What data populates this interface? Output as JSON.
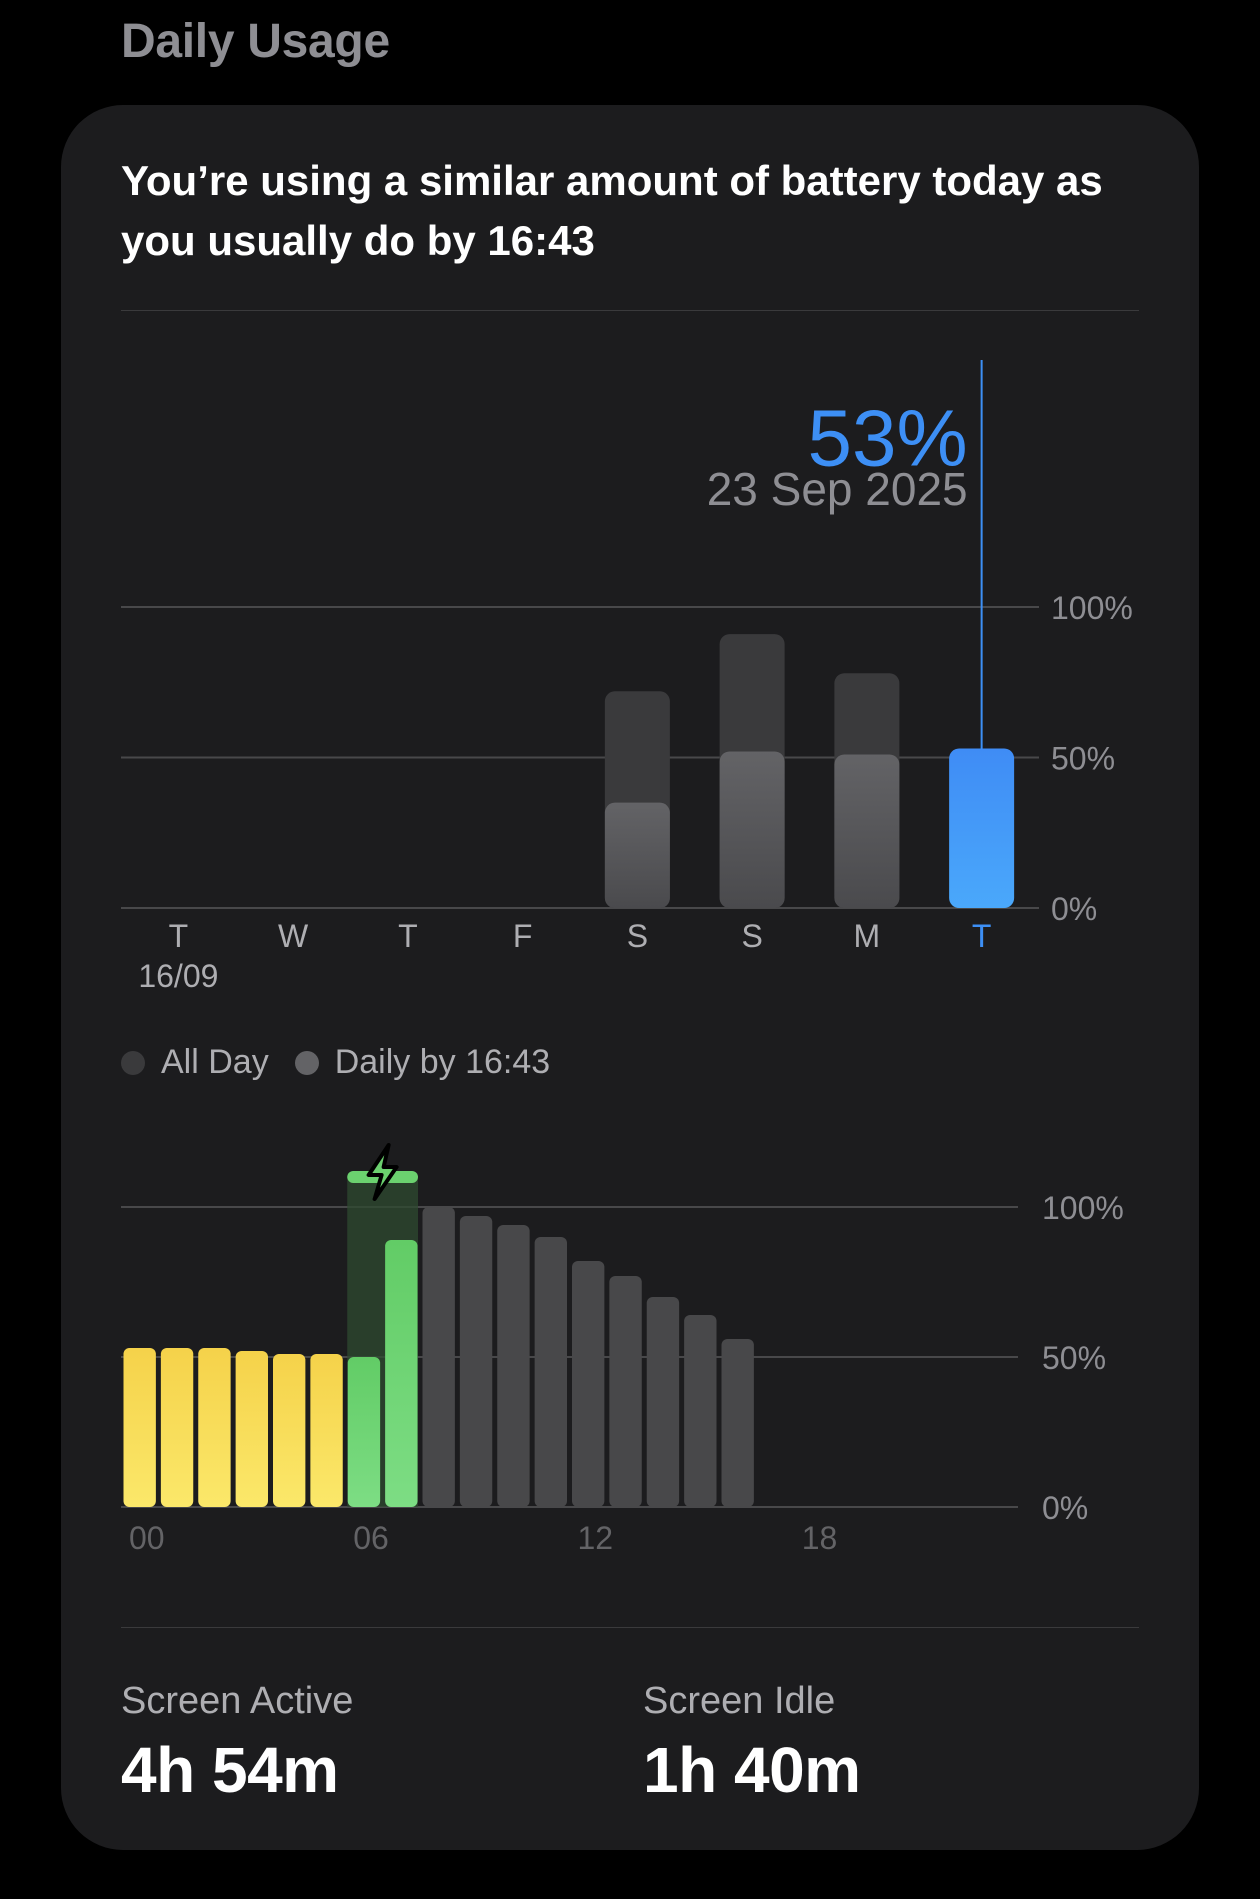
{
  "section_title": "Daily Usage",
  "headline": "You’re using a similar amount of battery today as you usually do by 16:43",
  "weekly_chart": {
    "selected_value": "53%",
    "selected_date": "23 Sep 2025",
    "y_ticks": [
      "100%",
      "50%",
      "0%"
    ],
    "days": [
      {
        "label": "T",
        "sub": "16/09",
        "all_day": null,
        "by_time": null
      },
      {
        "label": "W",
        "sub": "",
        "all_day": null,
        "by_time": null
      },
      {
        "label": "T",
        "sub": "",
        "all_day": null,
        "by_time": null
      },
      {
        "label": "F",
        "sub": "",
        "all_day": null,
        "by_time": null
      },
      {
        "label": "S",
        "sub": "",
        "all_day": 72,
        "by_time": 35
      },
      {
        "label": "S",
        "sub": "",
        "all_day": 91,
        "by_time": 52
      },
      {
        "label": "M",
        "sub": "",
        "all_day": 78,
        "by_time": 51
      },
      {
        "label": "T",
        "sub": "",
        "all_day": null,
        "by_time": 53,
        "selected": true
      }
    ],
    "colors": {
      "selected": "#3d8ff5",
      "all_day": "#3a3a3c",
      "by_time": "#5a5a5e",
      "label": "#aeaeb2",
      "selected_label": "#3d8ff5"
    }
  },
  "legend": {
    "all_day": "All Day",
    "daily_by": "Daily by 16:43",
    "all_day_color": "#3a3a3c",
    "daily_by_color": "#636366"
  },
  "hourly_chart": {
    "y_ticks": [
      "100%",
      "50%",
      "0%"
    ],
    "x_ticks": [
      "00",
      "06",
      "12",
      "18"
    ],
    "levels": [
      53,
      53,
      53,
      52,
      51,
      51,
      50,
      89,
      100,
      97,
      94,
      90,
      82,
      77,
      70,
      64,
      56
    ],
    "states": [
      "battery",
      "battery",
      "battery",
      "battery",
      "battery",
      "battery",
      "charging",
      "charging",
      "forecast",
      "forecast",
      "forecast",
      "forecast",
      "forecast",
      "forecast",
      "forecast",
      "forecast",
      "forecast"
    ],
    "charge_top": 110,
    "colors": {
      "battery": "#f7d64a",
      "charging": "#6bd16f",
      "forecast": "#48484a",
      "charge_bg": "#2e4a30"
    }
  },
  "stats": {
    "screen_active_label": "Screen Active",
    "screen_active_value": "4h 54m",
    "screen_idle_label": "Screen Idle",
    "screen_idle_value": "1h 40m"
  }
}
